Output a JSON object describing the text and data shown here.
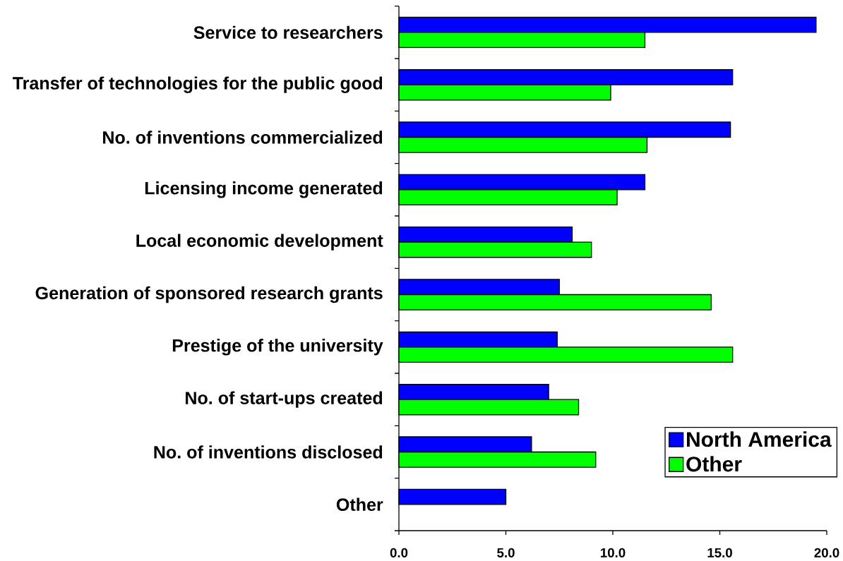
{
  "chart_data": {
    "type": "bar",
    "orientation": "horizontal",
    "categories": [
      "Service to researchers",
      "Transfer of technologies for the public good",
      "No. of inventions commercialized",
      "Licensing income generated",
      "Local economic development",
      "Generation of sponsored research grants",
      "Prestige of the university",
      "No. of start-ups created",
      "No. of inventions disclosed",
      "Other"
    ],
    "series": [
      {
        "name": "North America",
        "color": "#0000ff",
        "values": [
          19.5,
          15.6,
          15.5,
          11.5,
          8.1,
          7.5,
          7.4,
          7.0,
          6.2,
          5.0
        ]
      },
      {
        "name": "Other",
        "color": "#00ff00",
        "values": [
          11.5,
          9.9,
          11.6,
          10.2,
          9.0,
          14.6,
          15.6,
          8.4,
          9.2,
          null
        ]
      }
    ],
    "xlim": [
      0,
      20
    ],
    "xticks": [
      {
        "value": 0,
        "label": "0.0"
      },
      {
        "value": 5,
        "label": "5.0"
      },
      {
        "value": 10,
        "label": "10.0"
      },
      {
        "value": 15,
        "label": "15.0"
      },
      {
        "value": 20,
        "label": "20.0"
      }
    ],
    "legend": "bottom right"
  }
}
